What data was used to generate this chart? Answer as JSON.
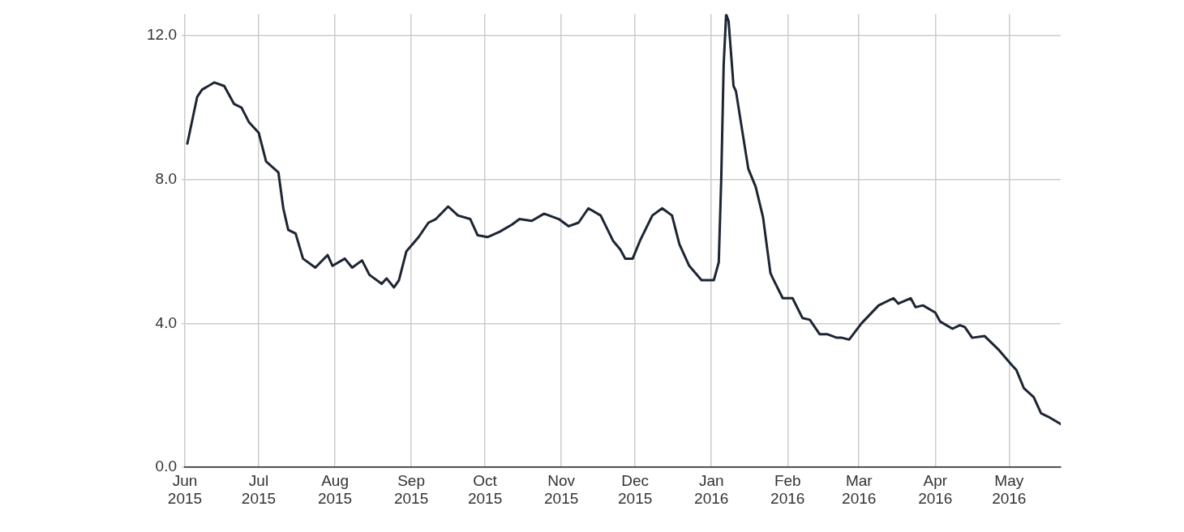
{
  "chart_data": {
    "type": "line",
    "x": [
      "2015-06-02",
      "2015-06-06",
      "2015-06-08",
      "2015-06-13",
      "2015-06-17",
      "2015-06-21",
      "2015-06-24",
      "2015-06-27",
      "2015-07-01",
      "2015-07-04",
      "2015-07-09",
      "2015-07-11",
      "2015-07-13",
      "2015-07-16",
      "2015-07-19",
      "2015-07-24",
      "2015-07-29",
      "2015-07-31",
      "2015-08-05",
      "2015-08-08",
      "2015-08-12",
      "2015-08-15",
      "2015-08-20",
      "2015-08-22",
      "2015-08-25",
      "2015-08-27",
      "2015-08-30",
      "2015-09-04",
      "2015-09-08",
      "2015-09-11",
      "2015-09-16",
      "2015-09-20",
      "2015-09-25",
      "2015-09-28",
      "2015-10-02",
      "2015-10-07",
      "2015-10-12",
      "2015-10-15",
      "2015-10-20",
      "2015-10-25",
      "2015-10-31",
      "2015-11-04",
      "2015-11-08",
      "2015-11-12",
      "2015-11-17",
      "2015-11-22",
      "2015-11-25",
      "2015-11-27",
      "2015-11-30",
      "2015-12-03",
      "2015-12-08",
      "2015-12-12",
      "2015-12-16",
      "2015-12-19",
      "2015-12-23",
      "2015-12-28",
      "2016-01-02",
      "2016-01-04",
      "2016-01-05",
      "2016-01-06",
      "2016-01-07",
      "2016-01-08",
      "2016-01-10",
      "2016-01-11",
      "2016-01-16",
      "2016-01-19",
      "2016-01-22",
      "2016-01-25",
      "2016-01-26",
      "2016-01-30",
      "2016-02-03",
      "2016-02-07",
      "2016-02-10",
      "2016-02-14",
      "2016-02-17",
      "2016-02-21",
      "2016-02-23",
      "2016-02-26",
      "2016-03-02",
      "2016-03-09",
      "2016-03-15",
      "2016-03-17",
      "2016-03-22",
      "2016-03-24",
      "2016-03-27",
      "2016-04-01",
      "2016-04-03",
      "2016-04-08",
      "2016-04-11",
      "2016-04-13",
      "2016-04-16",
      "2016-04-21",
      "2016-04-27",
      "2016-05-02",
      "2016-05-04",
      "2016-05-07",
      "2016-05-11",
      "2016-05-14",
      "2016-05-17",
      "2016-05-22"
    ],
    "series": [
      {
        "color": "#1c2533",
        "values": [
          9.0,
          10.3,
          10.5,
          10.7,
          10.6,
          10.1,
          10.0,
          9.6,
          9.3,
          8.5,
          8.2,
          7.2,
          6.6,
          6.5,
          5.8,
          5.55,
          5.9,
          5.6,
          5.8,
          5.55,
          5.75,
          5.35,
          5.1,
          5.25,
          5.0,
          5.2,
          6.0,
          6.4,
          6.8,
          6.9,
          7.25,
          7.0,
          6.9,
          6.45,
          6.4,
          6.55,
          6.75,
          6.9,
          6.85,
          7.05,
          6.9,
          6.7,
          6.8,
          7.2,
          7.0,
          6.3,
          6.05,
          5.8,
          5.8,
          6.3,
          7.0,
          7.2,
          7.0,
          6.2,
          5.6,
          5.2,
          5.2,
          5.7,
          8.0,
          11.2,
          12.6,
          12.4,
          10.6,
          10.45,
          8.3,
          7.8,
          6.95,
          5.4,
          5.25,
          4.7,
          4.7,
          4.15,
          4.1,
          3.7,
          3.7,
          3.6,
          3.6,
          3.55,
          4.0,
          4.5,
          4.7,
          4.55,
          4.7,
          4.45,
          4.5,
          4.3,
          4.05,
          3.85,
          3.95,
          3.9,
          3.6,
          3.65,
          3.25,
          2.85,
          2.7,
          2.2,
          1.95,
          1.5,
          1.4,
          1.2
        ]
      }
    ],
    "xlim": [
      "2015-06-01",
      "2016-05-22"
    ],
    "xticks": [
      {
        "value": "2015-06-01",
        "label": "Jun 2015"
      },
      {
        "value": "2015-07-01",
        "label": "Jul 2015"
      },
      {
        "value": "2015-08-01",
        "label": "Aug 2015"
      },
      {
        "value": "2015-09-01",
        "label": "Sep 2015"
      },
      {
        "value": "2015-10-01",
        "label": "Oct 2015"
      },
      {
        "value": "2015-11-01",
        "label": "Nov 2015"
      },
      {
        "value": "2015-12-01",
        "label": "Dec 2015"
      },
      {
        "value": "2016-01-01",
        "label": "Jan 2016"
      },
      {
        "value": "2016-02-01",
        "label": "Feb 2016"
      },
      {
        "value": "2016-03-01",
        "label": "Mar 2016"
      },
      {
        "value": "2016-04-01",
        "label": "Apr 2016"
      },
      {
        "value": "2016-05-01",
        "label": "May 2016"
      }
    ],
    "ylim": [
      0,
      12.6
    ],
    "yticks": [
      {
        "value": 0,
        "label": "0.0"
      },
      {
        "value": 4,
        "label": "4.0"
      },
      {
        "value": 8,
        "label": "8.0"
      },
      {
        "value": 12,
        "label": "12.0"
      }
    ],
    "grid": true,
    "legend": false,
    "marker": "none",
    "line_style": "solid"
  }
}
